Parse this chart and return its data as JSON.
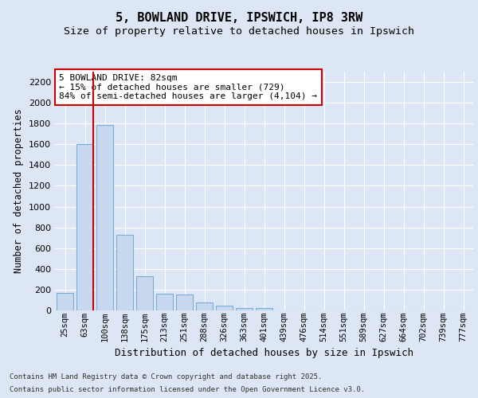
{
  "title": "5, BOWLAND DRIVE, IPSWICH, IP8 3RW",
  "subtitle": "Size of property relative to detached houses in Ipswich",
  "xlabel": "Distribution of detached houses by size in Ipswich",
  "ylabel": "Number of detached properties",
  "categories": [
    "25sqm",
    "63sqm",
    "100sqm",
    "138sqm",
    "175sqm",
    "213sqm",
    "251sqm",
    "288sqm",
    "326sqm",
    "363sqm",
    "401sqm",
    "439sqm",
    "476sqm",
    "514sqm",
    "551sqm",
    "589sqm",
    "627sqm",
    "664sqm",
    "702sqm",
    "739sqm",
    "777sqm"
  ],
  "values": [
    165,
    1600,
    1790,
    725,
    330,
    160,
    155,
    80,
    45,
    25,
    20,
    0,
    0,
    0,
    0,
    0,
    0,
    0,
    0,
    0,
    0
  ],
  "bar_color": "#c8d8ef",
  "bar_edge_color": "#7aadd4",
  "vline_color": "#cc0000",
  "annotation_text": "5 BOWLAND DRIVE: 82sqm\n← 15% of detached houses are smaller (729)\n84% of semi-detached houses are larger (4,104) →",
  "annotation_box_facecolor": "#ffffff",
  "annotation_box_edgecolor": "#cc0000",
  "background_color": "#dde6f5",
  "grid_color": "#ffffff",
  "ylim": [
    0,
    2300
  ],
  "yticks": [
    0,
    200,
    400,
    600,
    800,
    1000,
    1200,
    1400,
    1600,
    1800,
    2000,
    2200
  ],
  "footer_line1": "Contains HM Land Registry data © Crown copyright and database right 2025.",
  "footer_line2": "Contains public sector information licensed under the Open Government Licence v3.0.",
  "title_fontsize": 11,
  "subtitle_fontsize": 9.5,
  "tick_fontsize": 7.5,
  "ylabel_fontsize": 8.5,
  "xlabel_fontsize": 9,
  "annotation_fontsize": 8,
  "footer_fontsize": 6.5
}
